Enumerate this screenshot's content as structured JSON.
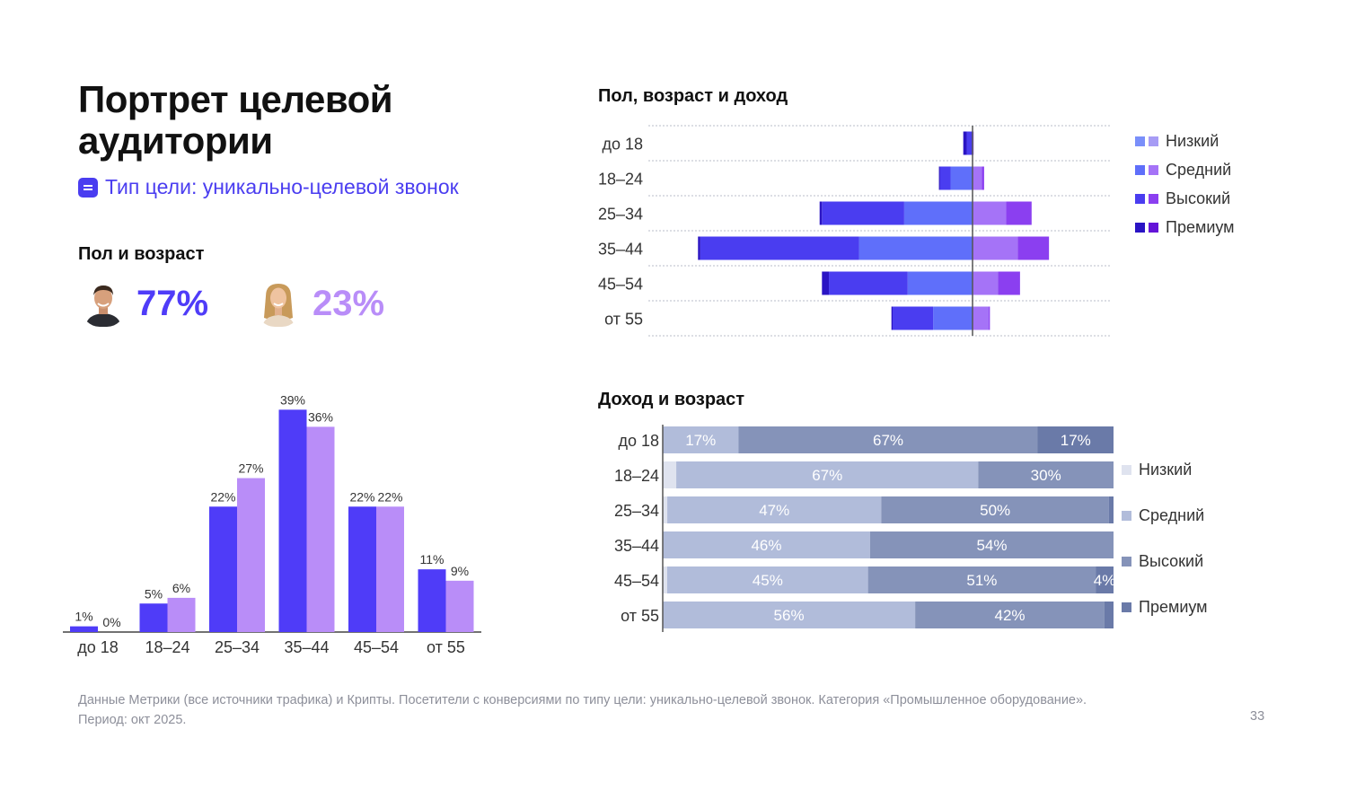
{
  "header": {
    "title": "Портрет целевой аудитории",
    "goal_type": "Тип цели: уникально-целевой звонок",
    "goal_icon": "list-icon"
  },
  "gender_age": {
    "section_title": "Пол и возраст",
    "male_pct": "77%",
    "female_pct": "23%",
    "male_color": "#4f3cf8",
    "female_color": "#b98df8"
  },
  "sections": {
    "pyramid_title": "Пол, возраст и доход",
    "income_age_title": "Доход и возраст"
  },
  "pyramid_legend": [
    "Низкий",
    "Средний",
    "Высокий",
    "Премиум"
  ],
  "income_legend": [
    "Низкий",
    "Средний",
    "Высокий",
    "Премиум"
  ],
  "footnote": {
    "line1": "Данные Метрики (все источники трафика) и Крипты. Посетители с конверсиями по типу цели: уникально-целевой звонок. Категория «Промышленное оборудование».",
    "line2": "Период: окт 2025."
  },
  "page_number": "33",
  "chart_data": [
    {
      "type": "bar",
      "categories": [
        "до 18",
        "18–24",
        "25–34",
        "35–44",
        "45–54",
        "от 55"
      ],
      "series": [
        {
          "values": [
            1,
            5,
            22,
            39,
            22,
            11
          ],
          "labels": [
            "1%",
            "5%",
            "22%",
            "39%",
            "22%",
            "11%"
          ],
          "color": "#4f3cf8"
        },
        {
          "values": [
            0,
            6,
            27,
            36,
            22,
            9
          ],
          "labels": [
            "0%",
            "6%",
            "27%",
            "36%",
            "22%",
            "9%"
          ],
          "color": "#b98df8"
        }
      ],
      "ylim": [
        0,
        40
      ]
    },
    {
      "type": "bar",
      "orientation": "horizontal-diverging",
      "categories": [
        "до 18",
        "18–24",
        "25–34",
        "35–44",
        "45–54",
        "от 55"
      ],
      "legend": [
        "Низкий",
        "Средний",
        "Высокий",
        "Премиум"
      ],
      "male_colors": [
        "#7a8ffa",
        "#5f6ffa",
        "#4a3df0",
        "#2a14c4"
      ],
      "female_colors": [
        "#a79cf5",
        "#a573f7",
        "#8b3ff0",
        "#6414d8"
      ],
      "male": [
        [
          0,
          0,
          0.5,
          0.3
        ],
        [
          0,
          1.9,
          0.9,
          0.1
        ],
        [
          0,
          5.9,
          7.1,
          0.2
        ],
        [
          0,
          9.8,
          13.7,
          0.2
        ],
        [
          0,
          5.6,
          6.8,
          0.6
        ],
        [
          0,
          3.4,
          3.5,
          0.1
        ]
      ],
      "female": [
        [
          0,
          0.1,
          0,
          0
        ],
        [
          0,
          0.8,
          0.2,
          0
        ],
        [
          0,
          2.9,
          2.2,
          0
        ],
        [
          0,
          3.9,
          2.7,
          0
        ],
        [
          0,
          2.2,
          1.9,
          0
        ],
        [
          0,
          1.4,
          0.1,
          0
        ]
      ]
    },
    {
      "type": "bar",
      "orientation": "horizontal-stacked-100",
      "categories": [
        "до 18",
        "18–24",
        "25–34",
        "35–44",
        "45–54",
        "от 55"
      ],
      "legend": [
        "Низкий",
        "Средний",
        "Высокий",
        "Премиум"
      ],
      "colors": [
        "#dfe3ef",
        "#b1bcda",
        "#8593b9",
        "#6a7aa8"
      ],
      "values": [
        [
          0,
          17,
          67,
          17
        ],
        [
          3,
          67,
          30,
          0
        ],
        [
          1,
          47,
          50,
          1
        ],
        [
          0,
          46,
          54,
          0
        ],
        [
          1,
          45,
          51,
          4
        ],
        [
          0,
          56,
          42,
          2
        ]
      ],
      "labels": [
        [
          "",
          "17%",
          "67%",
          "17%"
        ],
        [
          "",
          "67%",
          "30%",
          ""
        ],
        [
          "",
          "47%",
          "50%",
          ""
        ],
        [
          "",
          "46%",
          "54%",
          ""
        ],
        [
          "",
          "45%",
          "51%",
          "4%"
        ],
        [
          "",
          "56%",
          "42%",
          ""
        ]
      ]
    }
  ]
}
